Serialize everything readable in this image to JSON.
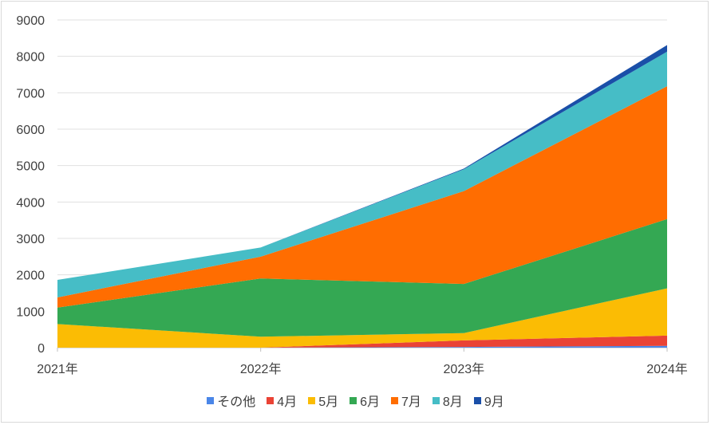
{
  "chart_data": {
    "type": "area",
    "stacked": true,
    "categories": [
      "2021年",
      "2022年",
      "2023年",
      "2024年"
    ],
    "ylim": [
      0,
      9000
    ],
    "yticks": [
      "0",
      "1000",
      "2000",
      "3000",
      "4000",
      "5000",
      "6000",
      "7000",
      "8000",
      "9000"
    ],
    "grid": true,
    "legend_position": "bottom",
    "series": [
      {
        "name": "その他",
        "color": "#4a86e8",
        "values": [
          0,
          0,
          20,
          50
        ]
      },
      {
        "name": "4月",
        "color": "#ea4335",
        "values": [
          0,
          0,
          180,
          280
        ]
      },
      {
        "name": "5月",
        "color": "#fbbc04",
        "values": [
          650,
          300,
          200,
          1300
        ]
      },
      {
        "name": "6月",
        "color": "#34a853",
        "values": [
          450,
          1600,
          1350,
          1900
        ]
      },
      {
        "name": "7月",
        "color": "#ff6d01",
        "values": [
          280,
          600,
          2550,
          3650
        ]
      },
      {
        "name": "8月",
        "color": "#46bdc6",
        "values": [
          480,
          250,
          600,
          950
        ]
      },
      {
        "name": "9月",
        "color": "#1a4fa8",
        "values": [
          0,
          0,
          20,
          180
        ]
      }
    ]
  }
}
